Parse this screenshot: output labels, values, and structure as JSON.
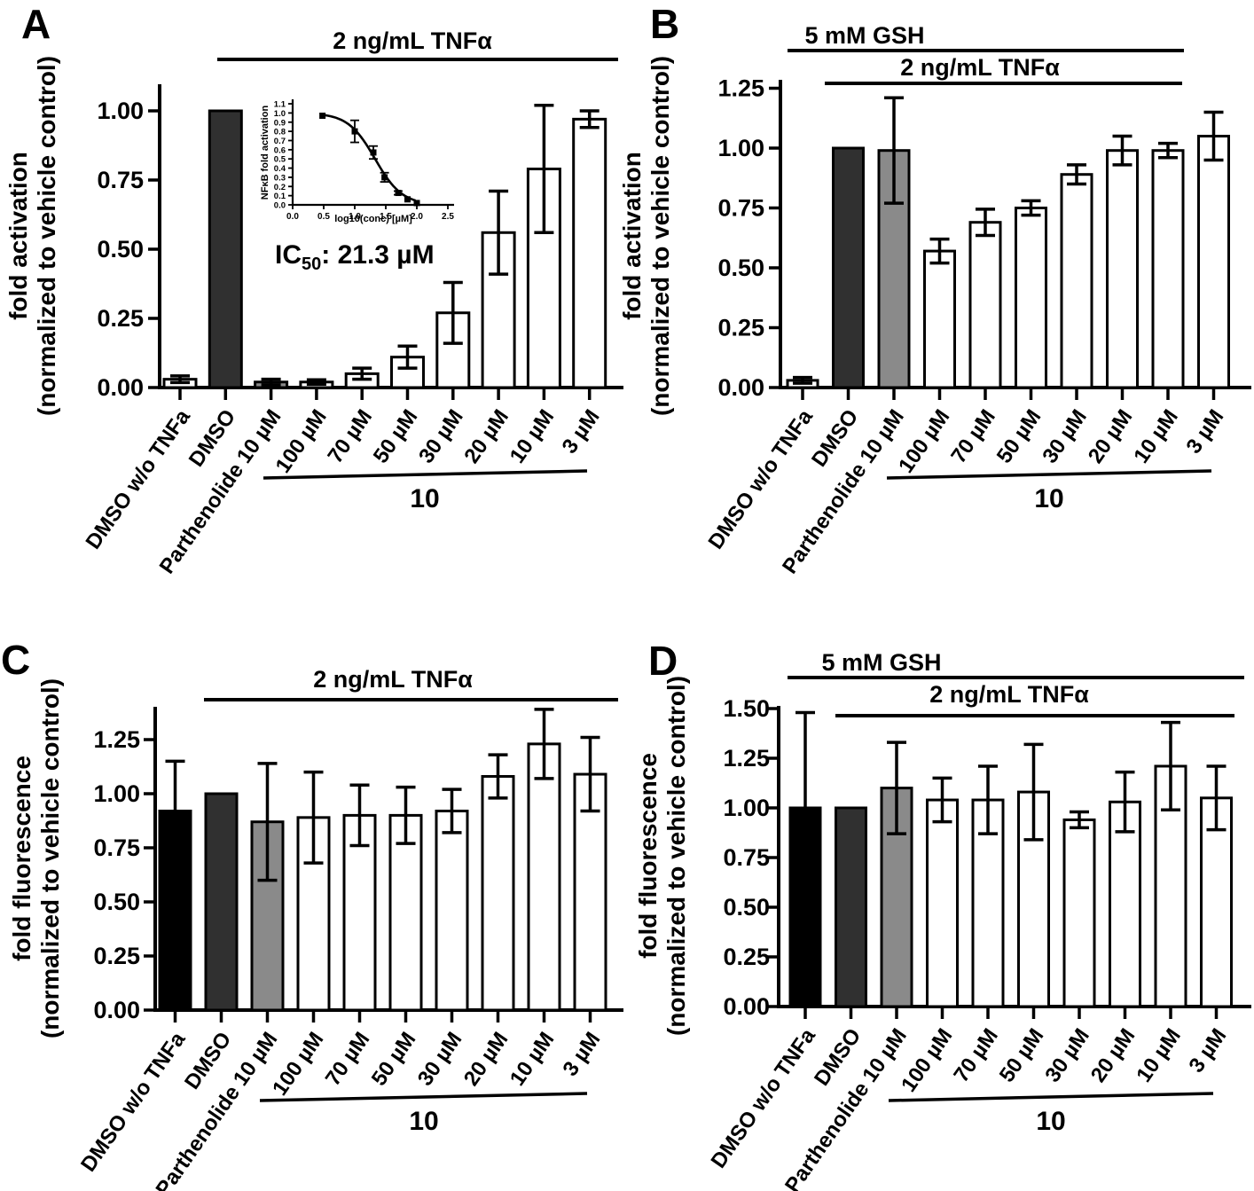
{
  "figure": {
    "panel_letters": [
      "A",
      "B",
      "C",
      "D"
    ]
  },
  "colors": {
    "white": "#ffffff",
    "charcoal": "#303030",
    "gray": "#8a8a8a",
    "black": "#000000",
    "ink": "#000000",
    "background": "#ffffff"
  },
  "chart_data": [
    {
      "id": "A",
      "type": "bar",
      "ylabel_lines": [
        "fold activation",
        "(normalized to vehicle control)"
      ],
      "ytick_labels": [
        "0.00",
        "0.25",
        "0.50",
        "0.75",
        "1.00"
      ],
      "ytick_values": [
        0,
        0.25,
        0.5,
        0.75,
        1.0
      ],
      "ylim": [
        0,
        1.1
      ],
      "headers": [
        {
          "text": "2 ng/mL TNFα"
        }
      ],
      "categories": [
        "DMSO w/o TNFa",
        "DMSO",
        "Parthenolide 10 µM",
        "100 µM",
        "70 µM",
        "50 µM",
        "30 µM",
        "20 µM",
        "10 µM",
        "3 µM"
      ],
      "values": [
        0.03,
        1.0,
        0.02,
        0.02,
        0.05,
        0.11,
        0.27,
        0.56,
        0.79,
        0.97
      ],
      "errors": [
        0.012,
        0,
        0.01,
        0.008,
        0.02,
        0.04,
        0.11,
        0.15,
        0.23,
        0.03
      ],
      "bar_colors": [
        "white",
        "charcoal",
        "gray",
        "white",
        "white",
        "white",
        "white",
        "white",
        "white",
        "white"
      ],
      "group_label": "10"
    },
    {
      "id": "B",
      "type": "bar",
      "ylabel_lines": [
        "fold activation",
        "(normalized to vehicle control)"
      ],
      "ytick_labels": [
        "0.00",
        "0.25",
        "0.50",
        "0.75",
        "1.00",
        "1.25"
      ],
      "ytick_values": [
        0,
        0.25,
        0.5,
        0.75,
        1.0,
        1.25
      ],
      "ylim": [
        0,
        1.28
      ],
      "headers": [
        {
          "text": "5 mM GSH"
        },
        {
          "text": "2 ng/mL TNFα"
        }
      ],
      "categories": [
        "DMSO w/o TNFa",
        "DMSO",
        "Parthenolide 10 µM",
        "100 µM",
        "70 µM",
        "50 µM",
        "30 µM",
        "20 µM",
        "10 µM",
        "3 µM"
      ],
      "values": [
        0.03,
        1.0,
        0.99,
        0.57,
        0.69,
        0.75,
        0.89,
        0.99,
        0.99,
        1.05
      ],
      "errors": [
        0.012,
        0,
        0.22,
        0.05,
        0.055,
        0.03,
        0.04,
        0.06,
        0.03,
        0.1
      ],
      "bar_colors": [
        "white",
        "charcoal",
        "gray",
        "white",
        "white",
        "white",
        "white",
        "white",
        "white",
        "white"
      ],
      "group_label": "10"
    },
    {
      "id": "C",
      "type": "bar",
      "ylabel_lines": [
        "fold fluorescence",
        "(normalized to vehicle control)"
      ],
      "ytick_labels": [
        "0.00",
        "0.25",
        "0.50",
        "0.75",
        "1.00",
        "1.25"
      ],
      "ytick_values": [
        0,
        0.25,
        0.5,
        0.75,
        1.0,
        1.25
      ],
      "ylim": [
        0,
        1.4
      ],
      "headers": [
        {
          "text": "2 ng/mL TNFα"
        }
      ],
      "categories": [
        "DMSO w/o TNFa",
        "DMSO",
        "Parthenolide 10 µM",
        "100 µM",
        "70 µM",
        "50 µM",
        "30 µM",
        "20 µM",
        "10 µM",
        "3 µM"
      ],
      "values": [
        0.92,
        1.0,
        0.87,
        0.89,
        0.9,
        0.9,
        0.92,
        1.08,
        1.23,
        1.09
      ],
      "errors": [
        0.23,
        0,
        0.27,
        0.21,
        0.14,
        0.13,
        0.1,
        0.1,
        0.16,
        0.17
      ],
      "bar_colors": [
        "black",
        "charcoal",
        "gray",
        "white",
        "white",
        "white",
        "white",
        "white",
        "white",
        "white"
      ],
      "group_label": "10"
    },
    {
      "id": "D",
      "type": "bar",
      "ylabel_lines": [
        "fold fluorescence",
        "(normalized to vehicle control)"
      ],
      "ytick_labels": [
        "0.00",
        "0.25",
        "0.50",
        "0.75",
        "1.00",
        "1.25",
        "1.50"
      ],
      "ytick_values": [
        0,
        0.25,
        0.5,
        0.75,
        1.0,
        1.25,
        1.5
      ],
      "ylim": [
        0,
        1.51
      ],
      "headers": [
        {
          "text": "5 mM GSH"
        },
        {
          "text": "2 ng/mL TNFα"
        }
      ],
      "categories": [
        "DMSO w/o TNFa",
        "DMSO",
        "Parthenolide 10 µM",
        "100 µM",
        "70 µM",
        "50 µM",
        "30 µM",
        "20 µM",
        "10 µM",
        "3 µM"
      ],
      "values": [
        1.0,
        1.0,
        1.1,
        1.04,
        1.04,
        1.08,
        0.94,
        1.03,
        1.21,
        1.05
      ],
      "errors": [
        0.48,
        0,
        0.23,
        0.11,
        0.17,
        0.24,
        0.04,
        0.15,
        0.22,
        0.16
      ],
      "bar_colors": [
        "black",
        "charcoal",
        "gray",
        "white",
        "white",
        "white",
        "white",
        "white",
        "white",
        "white"
      ],
      "group_label": "10"
    },
    {
      "id": "A-inset",
      "type": "scatter",
      "xlabel": "log10(conc) [µM]",
      "ylabel": "NFκB fold activation",
      "x": [
        0.48,
        1.0,
        1.3,
        1.48,
        1.7,
        1.85,
        2.0
      ],
      "y": [
        0.97,
        0.8,
        0.57,
        0.3,
        0.13,
        0.06,
        0.02
      ],
      "yerr": [
        0,
        0.12,
        0.07,
        0.05,
        0.02,
        0,
        0
      ],
      "xtick_labels": [
        "0.0",
        "0.5",
        "1.0",
        "1.5",
        "2.0",
        "2.5"
      ],
      "ytick_labels": [
        "0.0",
        "0.1",
        "0.2",
        "0.3",
        "0.4",
        "0.5",
        "0.6",
        "0.7",
        "0.8",
        "0.9",
        "1.0",
        "1.1"
      ],
      "fit": {
        "logIC50": 1.328,
        "hill": 2.0,
        "top": 1.0,
        "bottom": 0.0
      },
      "annotation": {
        "prefix": "IC",
        "sub": "50",
        "rest": ": 21.3 µM"
      }
    }
  ]
}
